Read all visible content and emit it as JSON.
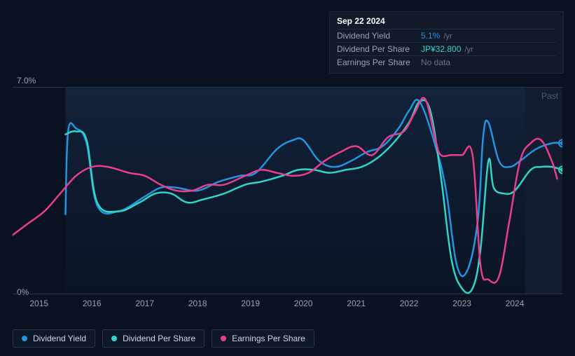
{
  "tooltip": {
    "date": "Sep 22 2024",
    "rows": [
      {
        "label": "Dividend Yield",
        "value": "5.1%",
        "value_color": "#2394df",
        "unit": "/yr"
      },
      {
        "label": "Dividend Per Share",
        "value": "JP¥32.800",
        "value_color": "#30d5c8",
        "unit": "/yr"
      },
      {
        "label": "Earnings Per Share",
        "value": "No data",
        "value_color": "#6b7280",
        "unit": ""
      }
    ]
  },
  "chart": {
    "type": "line",
    "y_max_label": "7.0%",
    "y_min_label": "0%",
    "past_label": "Past",
    "background": "#0a1221",
    "axis_text_color": "#9ca3af",
    "x_years": [
      "2015",
      "2016",
      "2017",
      "2018",
      "2019",
      "2020",
      "2021",
      "2022",
      "2023",
      "2024"
    ],
    "x_range": [
      2014.5,
      2024.9
    ],
    "y_range": [
      0,
      7
    ],
    "plot_band": {
      "from": 2015.5,
      "to": 2024.2,
      "color_top": "#1a3252",
      "color_bottom": "#0e1a30",
      "opacity": 0.55
    },
    "future_band": {
      "from": 2024.2,
      "to": 2024.9,
      "color": "#1a2438",
      "opacity": 0.6
    },
    "line_width": 2.5,
    "series": [
      {
        "name": "Dividend Yield",
        "color": "#2394df",
        "end_dot": true,
        "points": [
          [
            2015.5,
            2.7
          ],
          [
            2015.55,
            5.5
          ],
          [
            2015.7,
            5.6
          ],
          [
            2015.9,
            5.1
          ],
          [
            2016.1,
            3.0
          ],
          [
            2016.5,
            2.8
          ],
          [
            2017.0,
            3.3
          ],
          [
            2017.3,
            3.6
          ],
          [
            2017.6,
            3.6
          ],
          [
            2018.0,
            3.5
          ],
          [
            2018.4,
            3.8
          ],
          [
            2018.8,
            4.0
          ],
          [
            2019.1,
            4.1
          ],
          [
            2019.5,
            4.9
          ],
          [
            2019.8,
            5.2
          ],
          [
            2020.0,
            5.2
          ],
          [
            2020.3,
            4.5
          ],
          [
            2020.6,
            4.3
          ],
          [
            2020.9,
            4.5
          ],
          [
            2021.2,
            4.8
          ],
          [
            2021.5,
            5.0
          ],
          [
            2021.8,
            5.6
          ],
          [
            2022.0,
            6.2
          ],
          [
            2022.2,
            6.5
          ],
          [
            2022.5,
            5.0
          ],
          [
            2022.7,
            3.5
          ],
          [
            2022.9,
            1.0
          ],
          [
            2023.1,
            0.8
          ],
          [
            2023.3,
            2.5
          ],
          [
            2023.4,
            5.3
          ],
          [
            2023.5,
            5.8
          ],
          [
            2023.7,
            4.5
          ],
          [
            2023.9,
            4.3
          ],
          [
            2024.1,
            4.5
          ],
          [
            2024.4,
            4.9
          ],
          [
            2024.7,
            5.1
          ],
          [
            2024.9,
            5.1
          ]
        ]
      },
      {
        "name": "Dividend Per Share",
        "color": "#30d5c8",
        "end_dot": true,
        "points": [
          [
            2015.5,
            5.4
          ],
          [
            2015.7,
            5.5
          ],
          [
            2015.9,
            5.2
          ],
          [
            2016.1,
            3.1
          ],
          [
            2016.5,
            2.8
          ],
          [
            2016.9,
            3.1
          ],
          [
            2017.2,
            3.4
          ],
          [
            2017.5,
            3.4
          ],
          [
            2017.8,
            3.1
          ],
          [
            2018.1,
            3.2
          ],
          [
            2018.5,
            3.4
          ],
          [
            2018.9,
            3.7
          ],
          [
            2019.2,
            3.8
          ],
          [
            2019.6,
            4.0
          ],
          [
            2019.9,
            4.2
          ],
          [
            2020.2,
            4.2
          ],
          [
            2020.5,
            4.1
          ],
          [
            2020.8,
            4.2
          ],
          [
            2021.1,
            4.3
          ],
          [
            2021.4,
            4.6
          ],
          [
            2021.7,
            5.1
          ],
          [
            2022.0,
            5.8
          ],
          [
            2022.2,
            6.5
          ],
          [
            2022.4,
            6.2
          ],
          [
            2022.6,
            4.0
          ],
          [
            2022.8,
            1.2
          ],
          [
            2023.0,
            0.2
          ],
          [
            2023.2,
            0.2
          ],
          [
            2023.35,
            1.5
          ],
          [
            2023.5,
            4.5
          ],
          [
            2023.6,
            3.6
          ],
          [
            2023.8,
            3.4
          ],
          [
            2024.0,
            3.5
          ],
          [
            2024.3,
            4.2
          ],
          [
            2024.5,
            4.3
          ],
          [
            2024.7,
            4.3
          ],
          [
            2024.9,
            4.2
          ]
        ]
      },
      {
        "name": "Earnings Per Share",
        "color": "#e83e8c",
        "end_dot": false,
        "points": [
          [
            2014.5,
            2.0
          ],
          [
            2014.8,
            2.4
          ],
          [
            2015.1,
            2.8
          ],
          [
            2015.4,
            3.4
          ],
          [
            2015.7,
            4.0
          ],
          [
            2016.0,
            4.3
          ],
          [
            2016.3,
            4.3
          ],
          [
            2016.7,
            4.1
          ],
          [
            2017.0,
            4.0
          ],
          [
            2017.3,
            3.7
          ],
          [
            2017.6,
            3.5
          ],
          [
            2017.9,
            3.5
          ],
          [
            2018.2,
            3.7
          ],
          [
            2018.5,
            3.7
          ],
          [
            2018.9,
            4.0
          ],
          [
            2019.2,
            4.2
          ],
          [
            2019.5,
            4.1
          ],
          [
            2019.8,
            4.0
          ],
          [
            2020.1,
            4.1
          ],
          [
            2020.4,
            4.5
          ],
          [
            2020.7,
            4.8
          ],
          [
            2021.0,
            5.0
          ],
          [
            2021.3,
            4.7
          ],
          [
            2021.6,
            5.3
          ],
          [
            2021.9,
            5.5
          ],
          [
            2022.1,
            6.1
          ],
          [
            2022.3,
            6.6
          ],
          [
            2022.5,
            5.2
          ],
          [
            2022.6,
            4.7
          ],
          [
            2022.8,
            4.7
          ],
          [
            2023.0,
            4.7
          ],
          [
            2023.2,
            4.7
          ],
          [
            2023.35,
            1.0
          ],
          [
            2023.5,
            0.5
          ],
          [
            2023.7,
            0.6
          ],
          [
            2023.9,
            2.5
          ],
          [
            2024.1,
            4.5
          ],
          [
            2024.3,
            5.1
          ],
          [
            2024.5,
            5.2
          ],
          [
            2024.7,
            4.5
          ],
          [
            2024.8,
            3.9
          ]
        ]
      }
    ]
  },
  "legend": [
    {
      "label": "Dividend Yield",
      "color": "#2394df"
    },
    {
      "label": "Dividend Per Share",
      "color": "#30d5c8"
    },
    {
      "label": "Earnings Per Share",
      "color": "#e83e8c"
    }
  ]
}
